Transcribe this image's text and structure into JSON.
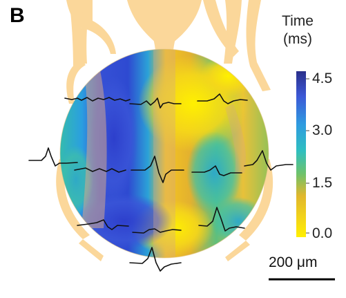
{
  "panel": {
    "label": "B"
  },
  "legend": {
    "title_line1": "Time",
    "title_line2": "(ms)",
    "ticks": [
      "4.5",
      "3.0",
      "1.5",
      "0.0"
    ],
    "colormap": [
      "#2a2f8a",
      "#3c58d6",
      "#2f9be0",
      "#2fbfc0",
      "#6fc26a",
      "#e0b72d",
      "#f2d31a",
      "#ffef00"
    ]
  },
  "scale_bar": {
    "label": "200 μm"
  },
  "colors": {
    "electrode_leads": "#fbd79a",
    "traces": "#111111"
  }
}
